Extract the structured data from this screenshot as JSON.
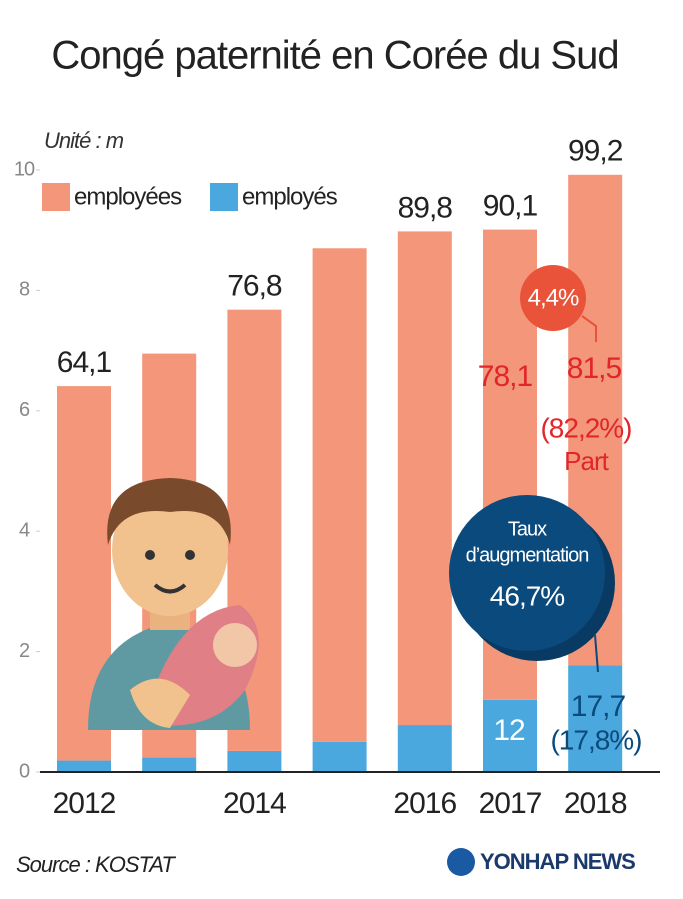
{
  "title": "Congé paternité en Corée du Sud",
  "chart_data": {
    "type": "stacked-bar",
    "categories": [
      "2012",
      null,
      "2014",
      null,
      "2016",
      "2017",
      "2018"
    ],
    "series": [
      {
        "name": "employés",
        "color": "#4aa8de",
        "values": [
          1.9,
          2.4,
          3.5,
          5,
          7.8,
          12,
          17.7
        ],
        "value_labels": [
          null,
          null,
          null,
          null,
          null,
          "12",
          "17,7"
        ]
      },
      {
        "name": "employées",
        "color": "#f4967a",
        "values": [
          62.2,
          67.1,
          73.3,
          82,
          82,
          78.1,
          81.5
        ],
        "value_labels": [
          null,
          null,
          null,
          null,
          null,
          "78,1",
          "81,5"
        ]
      }
    ],
    "totals": [
      64.1,
      null,
      76.8,
      null,
      89.8,
      90.1,
      99.2
    ],
    "total_labels": [
      "64,1",
      null,
      "76,8",
      null,
      "89,8",
      "90,1",
      "99,2"
    ],
    "ylim": [
      0,
      100
    ],
    "yticks": [
      {
        "value": 0,
        "label": "0"
      },
      {
        "value": 20,
        "label": "2"
      },
      {
        "value": 40,
        "label": "4"
      },
      {
        "value": 60,
        "label": "6"
      },
      {
        "value": 80,
        "label": "8"
      },
      {
        "value": 100,
        "label": "10"
      }
    ],
    "unit": "Unité : m",
    "legend_order": [
      1,
      0
    ],
    "annotations": {
      "share_women_2018": "(82,2%)",
      "share_label": "Part",
      "share_men_2018": "(17,8%)",
      "growth_women": "4,4%",
      "growth_label": [
        "Taux",
        "d’augmentation"
      ],
      "growth_men": "46,7%"
    }
  },
  "source": "Source : KOSTAT",
  "logo": "YONHAP NEWS"
}
